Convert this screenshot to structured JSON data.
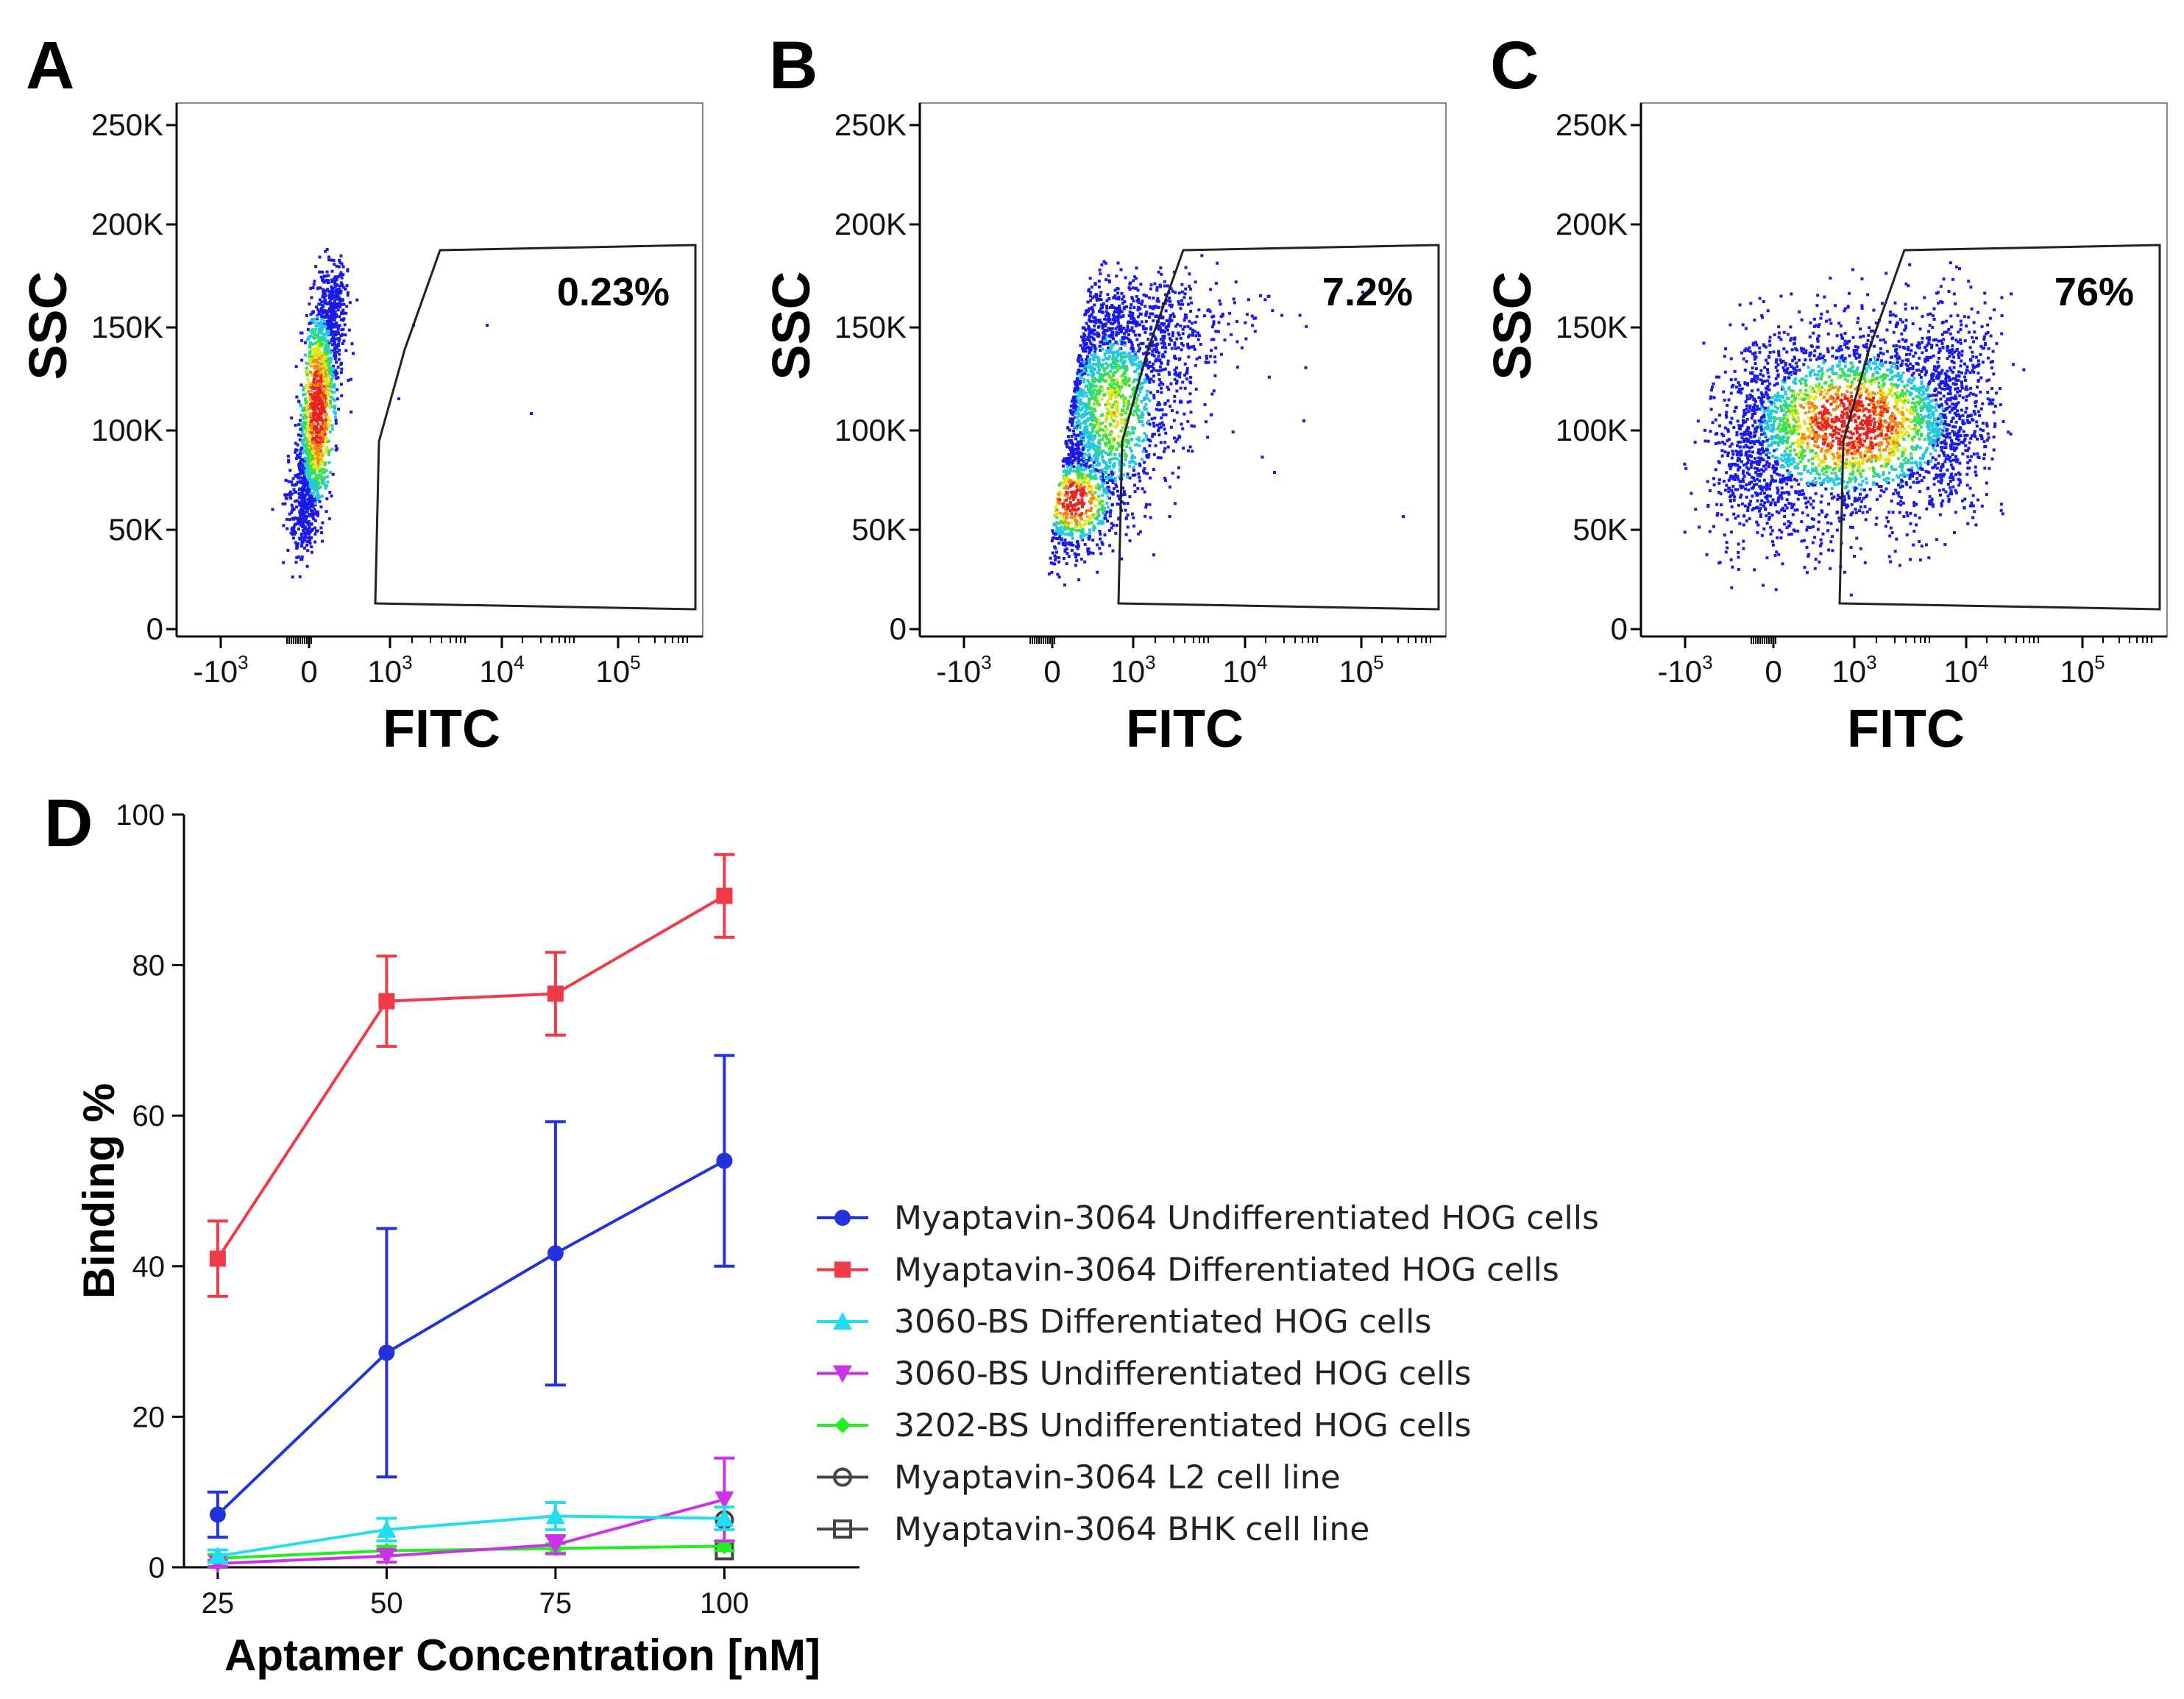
{
  "figure": {
    "panels": [
      {
        "letter": "A",
        "gate_label": "0.23%"
      },
      {
        "letter": "B",
        "gate_label": "7.2%"
      },
      {
        "letter": "C",
        "gate_label": "76%"
      }
    ],
    "flow_axes": {
      "xlabel": "FITC",
      "ylabel": "SSC",
      "y_ticks": [
        "250K",
        "200K",
        "150K",
        "100K",
        "50K",
        "0"
      ],
      "x_ticks": [
        {
          "base": "-10",
          "exp": "3"
        },
        {
          "base": "0",
          "exp": ""
        },
        {
          "base": "10",
          "exp": "3"
        },
        {
          "base": "10",
          "exp": "4"
        },
        {
          "base": "10",
          "exp": "5"
        }
      ]
    },
    "panel_d_letter": "D"
  },
  "chart_data": [
    {
      "type": "scatter",
      "panel": "A",
      "title": "",
      "xlabel": "FITC",
      "ylabel": "SSC",
      "ylim": [
        0,
        262144
      ],
      "gate_percent": "0.23%"
    },
    {
      "type": "scatter",
      "panel": "B",
      "title": "",
      "xlabel": "FITC",
      "ylabel": "SSC",
      "ylim": [
        0,
        262144
      ],
      "gate_percent": "7.2%"
    },
    {
      "type": "scatter",
      "panel": "C",
      "title": "",
      "xlabel": "FITC",
      "ylabel": "SSC",
      "ylim": [
        0,
        262144
      ],
      "gate_percent": "76%"
    },
    {
      "type": "line",
      "panel": "D",
      "title": "",
      "xlabel": "Aptamer Concentration [nM]",
      "ylabel": "Binding %",
      "x": [
        25,
        50,
        75,
        100
      ],
      "xlim": [
        20,
        120
      ],
      "ylim": [
        0,
        100
      ],
      "y_ticks": [
        0,
        20,
        40,
        60,
        80,
        100
      ],
      "x_ticks": [
        25,
        50,
        75,
        100
      ],
      "legend_position": "right",
      "series": [
        {
          "name": "Myaptavin-3064 Undifferentiated HOG cells",
          "color": "#2233dd",
          "marker": "circle",
          "values": [
            7,
            28.5,
            41.7,
            54
          ],
          "errors": [
            3,
            16.5,
            17.5,
            14
          ]
        },
        {
          "name": "Myaptavin-3064 Differentiated HOG cells",
          "color": "#f03a4a",
          "marker": "square",
          "values": [
            41,
            75.2,
            76.2,
            89.2
          ],
          "errors": [
            5,
            6,
            5.5,
            5.5
          ]
        },
        {
          "name": "3060-BS Differentiated HOG cells",
          "color": "#22dcf0",
          "marker": "triangle-up",
          "values": [
            1.5,
            5,
            6.8,
            6.5
          ],
          "errors": [
            0.8,
            1.5,
            1.8,
            1.5
          ]
        },
        {
          "name": "3060-BS Undifferentiated HOG cells",
          "color": "#cc33e6",
          "marker": "triangle-down",
          "values": [
            0.5,
            1.5,
            3,
            9
          ],
          "errors": [
            0.4,
            0.8,
            1.2,
            5.5
          ]
        },
        {
          "name": "3202-BS Undifferentiated HOG cells",
          "color": "#22ee22",
          "marker": "diamond",
          "values": [
            1.2,
            2.2,
            2.5,
            2.8
          ],
          "errors": [
            0.5,
            0.6,
            0.6,
            0.6
          ]
        },
        {
          "name": "Myaptavin-3064 L2 cell line",
          "color": "#444444",
          "marker": "circle-open",
          "values": [
            null,
            null,
            null,
            6.3
          ],
          "errors": [
            0,
            0,
            0,
            0
          ]
        },
        {
          "name": "Myaptavin-3064 BHK cell line",
          "color": "#444444",
          "marker": "square-open",
          "values": [
            null,
            null,
            null,
            2.2
          ],
          "errors": [
            0,
            0,
            0,
            0
          ]
        }
      ]
    }
  ]
}
